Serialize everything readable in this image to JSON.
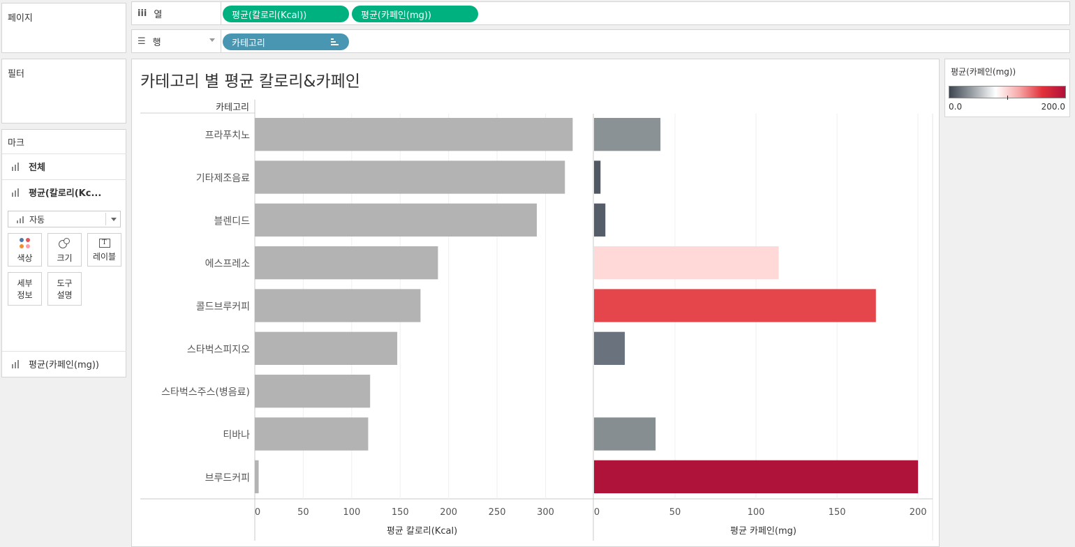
{
  "left": {
    "pages_title": "페이지",
    "filters_title": "필터",
    "marks_title": "마크",
    "marks_cards": [
      "전체",
      "평균(칼로리(Kc..."
    ],
    "mark_type": "자동",
    "mark_buttons": [
      "색상",
      "크기",
      "레이블"
    ],
    "mark_buttons2": [
      [
        "세부",
        "정보"
      ],
      [
        "도구",
        "설명"
      ]
    ],
    "color_field": "평균(카페인(mg))"
  },
  "shelves": {
    "columns_label": "열",
    "rows_label": "행",
    "column_pills": [
      "평균(칼로리(Kcal))",
      "평균(카페인(mg))"
    ],
    "row_pills": [
      "카테고리"
    ]
  },
  "view": {
    "title": "카테고리 별 평균 칼로리&카페인"
  },
  "legend": {
    "title": "평균(카페인(mg))",
    "min_label": "0.0",
    "max_label": "200.0",
    "colors": [
      "#3d4550",
      "#9aa0a6",
      "#ffffff",
      "#f7a8a8",
      "#e2313b",
      "#b2113a"
    ]
  },
  "chart_data": [
    {
      "type": "bar",
      "orientation": "horizontal",
      "row_header": "카테고리",
      "categories": [
        "프라푸치노",
        "기타제조음료",
        "블렌디드",
        "에스프레소",
        "콜드브루커피",
        "스타벅스피지오",
        "스타벅스주스(병음료)",
        "티바나",
        "브루드커피"
      ],
      "values": [
        328,
        320,
        291,
        189,
        171,
        147,
        119,
        117,
        4
      ],
      "xlabel": "평균 칼로리(Kcal)",
      "xticks": [
        0,
        50,
        100,
        150,
        200,
        250,
        300
      ],
      "xlim": [
        0,
        345
      ],
      "bar_color": "#b3b3b3",
      "grid": true
    },
    {
      "type": "bar",
      "orientation": "horizontal",
      "categories": [
        "프라푸치노",
        "기타제조음료",
        "블렌디드",
        "에스프레소",
        "콜드브루커피",
        "스타벅스피지오",
        "스타벅스주스(병음료)",
        "티바나",
        "브루드커피"
      ],
      "values": [
        41,
        4,
        7,
        114,
        174,
        19,
        0,
        38,
        200
      ],
      "colors": [
        "#8b9295",
        "#4f5863",
        "#555e68",
        "#fed9d8",
        "#e5464b",
        "#6a737d",
        "#ffffff",
        "#878e92",
        "#b0133a"
      ],
      "xlabel": "평균 카페인(mg)",
      "xticks": [
        0,
        50,
        100,
        150,
        200
      ],
      "xlim": [
        0,
        209
      ],
      "grid": true
    }
  ]
}
